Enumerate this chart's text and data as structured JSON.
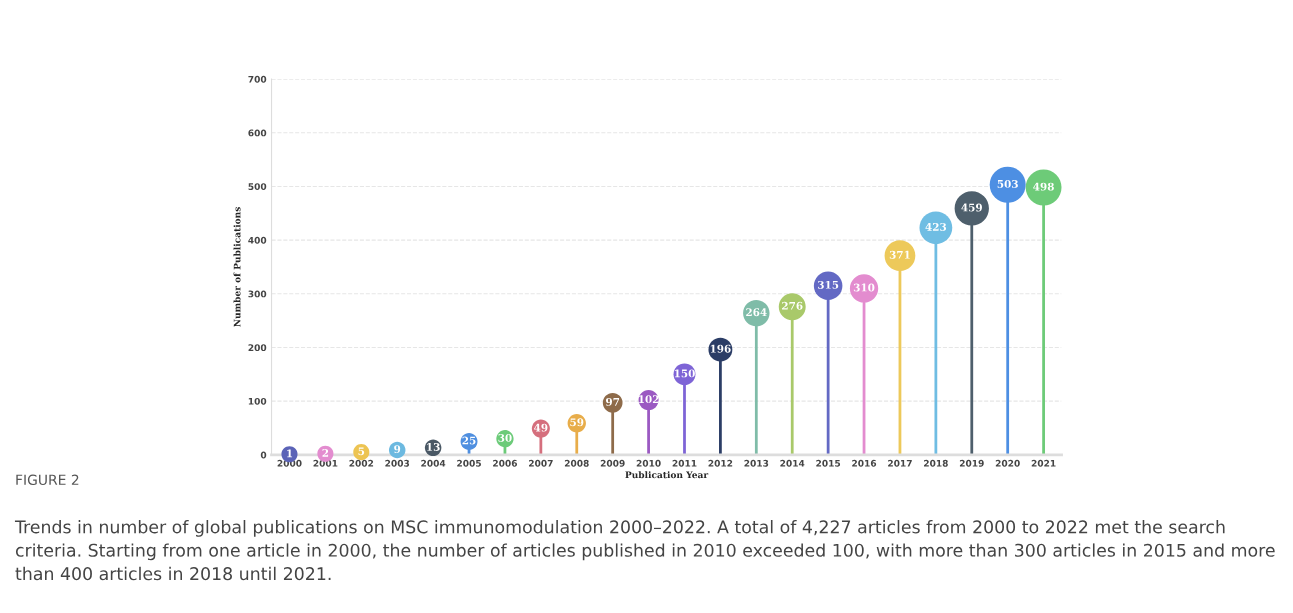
{
  "chart_data": {
    "type": "lollipop",
    "xlabel": "Publication Year",
    "ylabel": "Number of Publications",
    "categories": [
      "2000",
      "2001",
      "2002",
      "2003",
      "2004",
      "2005",
      "2006",
      "2007",
      "2008",
      "2009",
      "2010",
      "2011",
      "2012",
      "2013",
      "2014",
      "2015",
      "2016",
      "2017",
      "2018",
      "2019",
      "2020",
      "2021"
    ],
    "values": [
      1,
      2,
      5,
      9,
      13,
      25,
      30,
      49,
      59,
      97,
      102,
      150,
      196,
      264,
      276,
      315,
      310,
      371,
      423,
      459,
      503,
      498
    ],
    "colors": [
      "#5b63b7",
      "#e38ccf",
      "#edc452",
      "#6cb9e0",
      "#4a5865",
      "#4f8fe0",
      "#6ccb79",
      "#d56f7d",
      "#e8ad4a",
      "#8e6b4a",
      "#9b59c2",
      "#7e64d6",
      "#2b3d66",
      "#7fbca8",
      "#a9c96a",
      "#6369c4",
      "#e38ccf",
      "#edc95a",
      "#6fbde3",
      "#4e5f6c",
      "#4d8fe3",
      "#6dcb78"
    ],
    "sizes": [
      0.2,
      0.2,
      0.2,
      0.21,
      0.21,
      0.22,
      0.23,
      0.25,
      0.26,
      0.3,
      0.31,
      0.37,
      0.44,
      0.54,
      0.56,
      0.63,
      0.62,
      0.73,
      0.83,
      0.91,
      1,
      0.99
    ],
    "ylim": [
      0,
      700
    ],
    "yticks": [
      0,
      100,
      200,
      300,
      400,
      500,
      600,
      700
    ],
    "grid": "y",
    "data_labels": true,
    "annotations": [
      "FIGURE 2",
      "Trends in number of global publications on MSC immunomodulation 2000–2022. A total of 4,227 articles from 2000 to 2022 met the search criteria. Starting from one article in 2000, the number of articles published in 2010 exceeded 100, with more than 300 articles in 2015 and more than 400 articles in 2018 until 2021."
    ]
  }
}
